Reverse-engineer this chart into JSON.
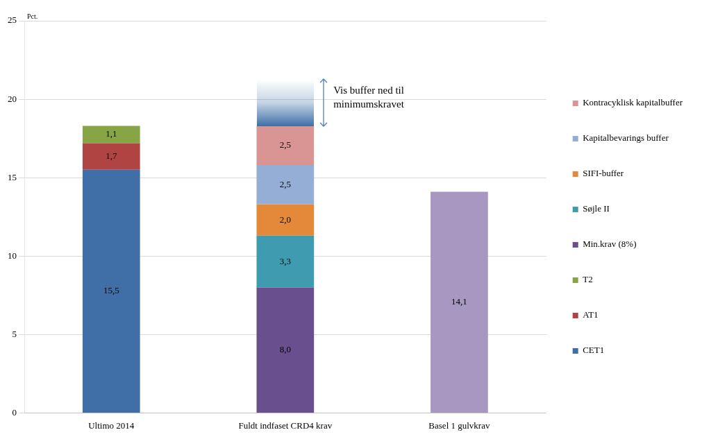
{
  "chart_data": {
    "type": "bar",
    "stacked": true,
    "ylabel": "Pct.",
    "categories": [
      "Ultimo 2014",
      "Fuldt indfaset CRD4 krav",
      "Basel 1 gulvkrav"
    ],
    "series": [
      {
        "name": "CET1",
        "color": "#3f6fa6",
        "values": [
          15.5,
          null,
          null
        ],
        "value_labels": [
          "15,5",
          null,
          null
        ]
      },
      {
        "name": "AT1",
        "color": "#b04442",
        "values": [
          1.7,
          null,
          null
        ],
        "value_labels": [
          "1,7",
          null,
          null
        ]
      },
      {
        "name": "T2",
        "color": "#87a545",
        "values": [
          1.1,
          null,
          null
        ],
        "value_labels": [
          "1,1",
          null,
          null
        ]
      },
      {
        "name": "Min.krav (8%)",
        "color": "#6a4f8e",
        "values": [
          null,
          8.0,
          null
        ],
        "value_labels": [
          null,
          "8,0",
          null
        ]
      },
      {
        "name": "Søjle II",
        "color": "#3e9bb0",
        "values": [
          null,
          3.3,
          null
        ],
        "value_labels": [
          null,
          "3,3",
          null
        ]
      },
      {
        "name": "SIFI-buffer",
        "color": "#e4893a",
        "values": [
          null,
          2.0,
          null
        ],
        "value_labels": [
          null,
          "2,0",
          null
        ]
      },
      {
        "name": "Kapitalbevarings buffer",
        "color": "#94aed5",
        "values": [
          null,
          2.5,
          null
        ],
        "value_labels": [
          null,
          "2,5",
          null
        ]
      },
      {
        "name": "Kontracyklisk kapitalbuffer",
        "color": "#d99594",
        "values": [
          null,
          2.5,
          null
        ],
        "value_labels": [
          null,
          "2,5",
          null
        ]
      },
      {
        "color": "#a897c0",
        "values": [
          null,
          null,
          14.1
        ],
        "value_labels": [
          null,
          null,
          "14,1"
        ]
      }
    ],
    "ylim": [
      0,
      25
    ],
    "yticks": [
      0,
      5,
      10,
      15,
      20,
      25
    ],
    "grid": "y",
    "legend": "right",
    "annotations": [
      "Vis buffer ned til minimumskravet"
    ]
  }
}
